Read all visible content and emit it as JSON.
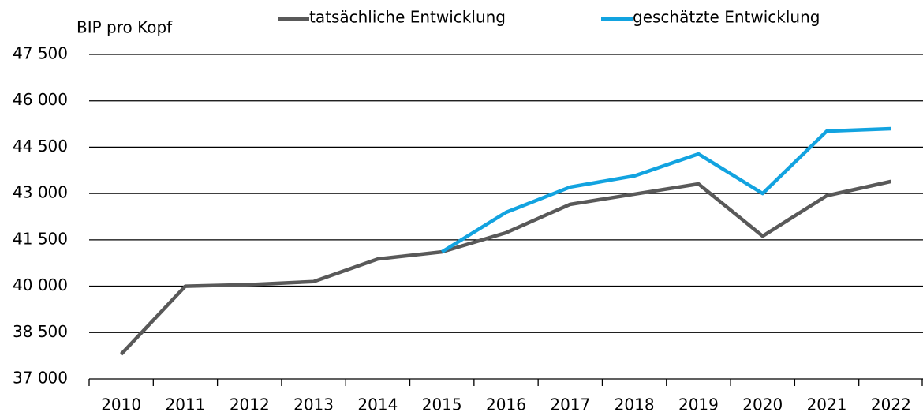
{
  "chart_data": {
    "type": "line",
    "y_label": "BIP pro Kopf",
    "categories": [
      "2010",
      "2011",
      "2012",
      "2013",
      "2014",
      "2015",
      "2016",
      "2017",
      "2018",
      "2019",
      "2020",
      "2021",
      "2022"
    ],
    "series": [
      {
        "name": "tatsächliche Entwicklung",
        "color": "#595959",
        "values": [
          37800,
          40000,
          40050,
          40150,
          40880,
          41110,
          41730,
          42650,
          42980,
          43310,
          41620,
          42930,
          43390
        ]
      },
      {
        "name": "geschätzte Entwicklung",
        "color": "#12a3e0",
        "values": [
          null,
          null,
          null,
          null,
          null,
          41110,
          42390,
          43210,
          43570,
          44280,
          43000,
          45020,
          45100
        ]
      }
    ],
    "ylim": [
      37000,
      47500
    ],
    "yticks": [
      {
        "value": 37000,
        "label": "37 000"
      },
      {
        "value": 38500,
        "label": "38 500"
      },
      {
        "value": 40000,
        "label": "40 000"
      },
      {
        "value": 41500,
        "label": "41 500"
      },
      {
        "value": 43000,
        "label": "43 000"
      },
      {
        "value": 44500,
        "label": "44 500"
      },
      {
        "value": 46000,
        "label": "46 000"
      },
      {
        "value": 47500,
        "label": "47 500"
      }
    ],
    "grid": true
  }
}
